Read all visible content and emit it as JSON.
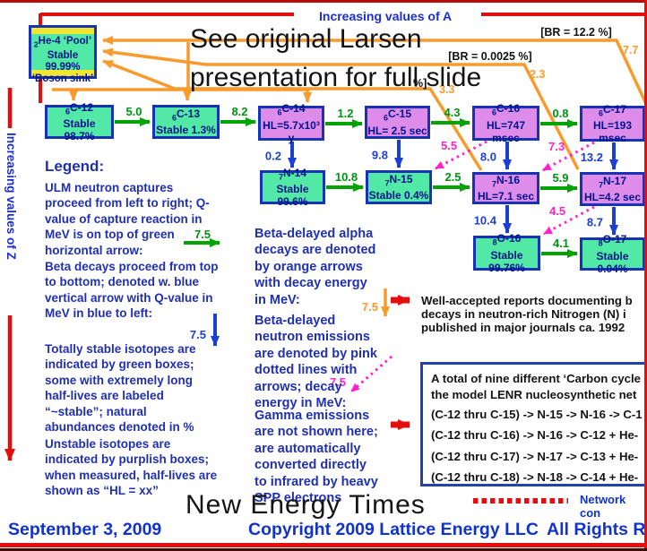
{
  "axes": {
    "increasing_a": "Increasing values of A",
    "increasing_z": "Increasing values of Z"
  },
  "overlay_note": {
    "line1": "See original Larsen",
    "line2": "presentation for full slide"
  },
  "pool": {
    "sub": "2",
    "name": "He-4 ‘Pool’",
    "line2": "Stable 99.99%",
    "line3": "‘Boson sink’"
  },
  "nuclides": [
    {
      "id": "C-12",
      "sub": "6",
      "name": "C-12",
      "line2": "Stable 98.7%",
      "type": "stable"
    },
    {
      "id": "C-13",
      "sub": "6",
      "name": "C-13",
      "line2": "Stable 1.3%",
      "type": "stable"
    },
    {
      "id": "C-14",
      "sub": "6",
      "name": "C-14",
      "line2": "HL=5.7x10³ y",
      "type": "unstable"
    },
    {
      "id": "C-15",
      "sub": "6",
      "name": "C-15",
      "line2": "HL= 2.5 sec",
      "type": "unstable"
    },
    {
      "id": "C-16",
      "sub": "6",
      "name": "C-16",
      "line2": "HL=747 msec",
      "type": "unstable"
    },
    {
      "id": "C-17",
      "sub": "6",
      "name": "C-17",
      "line2": "HL=193 msec",
      "type": "unstable"
    },
    {
      "id": "N-14",
      "sub": "7",
      "name": "N-14",
      "line2": "Stable 99.6%",
      "type": "stable"
    },
    {
      "id": "N-15",
      "sub": "7",
      "name": "N-15",
      "line2": "Stable 0.4%",
      "type": "stable"
    },
    {
      "id": "N-16",
      "sub": "7",
      "name": "N-16",
      "line2": "HL=7.1 sec",
      "type": "unstable"
    },
    {
      "id": "N-17",
      "sub": "7",
      "name": "N-17",
      "line2": "HL=4.2 sec",
      "type": "unstable"
    },
    {
      "id": "O-16",
      "sub": "8",
      "name": "O-16",
      "line2": "Stable 99.76%",
      "type": "stable"
    },
    {
      "id": "O-17",
      "sub": "8",
      "name": "O-17",
      "line2": "Stable 0.04%",
      "type": "stable"
    }
  ],
  "captures": [
    {
      "from": "C-12",
      "to": "C-13",
      "q": "5.0"
    },
    {
      "from": "C-13",
      "to": "C-14",
      "q": "8.2"
    },
    {
      "from": "C-14",
      "to": "C-15",
      "q": "1.2"
    },
    {
      "from": "C-15",
      "to": "C-16",
      "q": "4.3"
    },
    {
      "from": "C-16",
      "to": "C-17",
      "q": "0.8"
    },
    {
      "from": "N-14",
      "to": "N-15",
      "q": "10.8"
    },
    {
      "from": "N-15",
      "to": "N-16",
      "q": "2.5"
    },
    {
      "from": "N-16",
      "to": "N-17",
      "q": "5.9"
    },
    {
      "from": "O-16",
      "to": "O-17",
      "q": "4.1"
    }
  ],
  "betas": [
    {
      "from": "C-14",
      "to": "N-14",
      "q": "0.2"
    },
    {
      "from": "C-15",
      "to": "N-15",
      "q": "9.8"
    },
    {
      "from": "C-16",
      "to": "N-16",
      "q": "8.0"
    },
    {
      "from": "C-17",
      "to": "N-17",
      "q": "13.2"
    },
    {
      "from": "N-16",
      "to": "O-16",
      "q": "10.4"
    },
    {
      "from": "N-17",
      "to": "O-17",
      "q": "8.7"
    }
  ],
  "neutron_emissions": [
    {
      "from": "C-16",
      "to": "N-15",
      "q": "5.5"
    },
    {
      "from": "C-17",
      "to": "N-16",
      "q": "7.3"
    },
    {
      "from": "N-17",
      "to": "O-16",
      "q": "4.5"
    }
  ],
  "alpha_branches": {
    "br1_label": "[BR = 12.2 %]",
    "br1_q": "7.7",
    "br2_label": "[BR = 0.0025 %]",
    "br2_q": "2.3",
    "br3_label_fragment": "%]",
    "br3_q": "3.3"
  },
  "legend": {
    "title": "Legend:",
    "p1": "ULM neutron captures\nproceed from left to right; Q-\nvalue of capture reaction in\nMeV is on top of green\nhorizontal arrow:",
    "p2": "Beta decays proceed from top\nto bottom; denoted w. blue\nvertical arrow with Q-value in\nMeV in blue to left:",
    "p3": "Totally stable isotopes are\nindicated by green boxes;\nsome with extremely long\nhalf-lives are labeled\n“~stable”; natural\nabundances denoted in %",
    "p4": "Unstable isotopes are\nindicated by purplish boxes;\nwhen measured, half-lives are\nshown as “HL = xx”",
    "q_green_example": "7.5",
    "q_blue_example": "7.5",
    "q_orange_example": "7.5",
    "q_pink_example": "7.5"
  },
  "middle": {
    "p1": "Beta-delayed alpha\ndecays are denoted\nby orange arrows\nwith decay energy\nin MeV:",
    "p2": "Beta-delayed\nneutron emissions\nare denoted by pink\ndotted lines with\narrows; decay\nenergy in MeV:",
    "p3": "Gamma emissions\nare not shown here;\nare automatically\nconverted directly\nto infrared by heavy\nSPP electrons"
  },
  "right_note": "Well-accepted reports documenting b\ndecays in neutron-rich Nitrogen (N) i\npublished in major journals ca. 1992",
  "cycles_box": {
    "intro": "A total of nine different ‘Carbon cycle\nthe model LENR nucleosynthetic net",
    "reactions": [
      "(C-12 thru C-15) -> N-15 -> N-16 -> C-1",
      "(C-12 thru C-16) -> N-16 -> C-12 + He-",
      "(C-12 thru C-17) -> N-17 -> C-13 + He-",
      "(C-12 thru C-18) -> N-18 -> C-14 + He-"
    ]
  },
  "footer": {
    "brand": "New Energy Times",
    "date": "September 3, 2009",
    "copyright": "Copyright 2009 Lattice Energy LLC",
    "rights": "All Rights Re",
    "network_label": "Network con"
  },
  "colors": {
    "stable_box": "#52e9a6",
    "unstable_box": "#de8cea",
    "box_border": "#1733b5",
    "capture_green": "#00a400",
    "beta_blue": "#1b3fd4",
    "alpha_orange": "#f89b2c",
    "neutron_pink": "#ff22cc",
    "accent_red": "#e30f0f",
    "legend_blue": "#2030b0"
  }
}
